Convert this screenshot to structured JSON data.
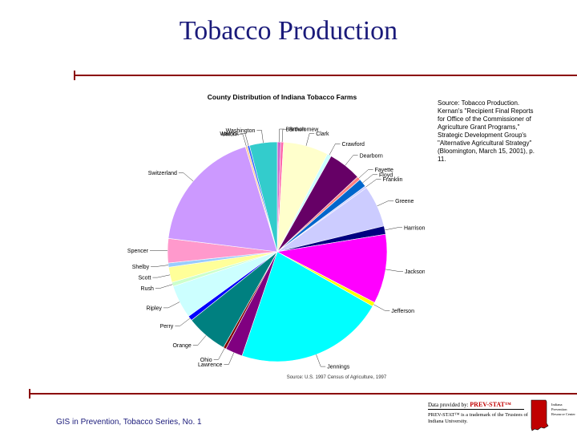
{
  "slide": {
    "title": "Tobacco Production",
    "footer": "GIS in Prevention, Tobacco Series, No. 1",
    "source_note": "Source: Tobacco Production. Kernan's \"Recipient Final Reports for Office of the Commissioner of Agriculture Grant Programs,\" Strategic Development Group's \"Alternative Agricultural Strategy\" (Bloomington, March 15, 2001), p. 11.",
    "provider": {
      "prefix": "Data provided by: ",
      "brand": "PREV-STAT™",
      "note": "PREV-STAT™ is a trademark of the Trustees of Indiana University.",
      "center_name": "Indiana Prevention Resource Center"
    }
  },
  "chart_data": {
    "type": "pie",
    "title": "County Distribution of Indiana Tobacco Farms",
    "source": "Source: U.S. 1997 Census of Agriculture, 1997",
    "slices": [
      {
        "label": "Bartholomew",
        "value": 0.5,
        "color": "#cc66cc"
      },
      {
        "label": "Brown",
        "value": 0.4,
        "color": "#ff66aa"
      },
      {
        "label": "Clark",
        "value": 6.5,
        "color": "#ffffcc"
      },
      {
        "label": "Crawford",
        "value": 0.6,
        "color": "#ccffff"
      },
      {
        "label": "Dearborn",
        "value": 4.8,
        "color": "#660066"
      },
      {
        "label": "Fayette",
        "value": 0.5,
        "color": "#ff8080"
      },
      {
        "label": "Floyd",
        "value": 1.2,
        "color": "#0066cc"
      },
      {
        "label": "Franklin",
        "value": 0.3,
        "color": "#ccccff"
      },
      {
        "label": "Greene",
        "value": 6.0,
        "color": "#ccccff"
      },
      {
        "label": "Harrison",
        "value": 1.2,
        "color": "#000080"
      },
      {
        "label": "Jackson",
        "value": 10.0,
        "color": "#ff00ff"
      },
      {
        "label": "Jefferson",
        "value": 0.6,
        "color": "#ffff00"
      },
      {
        "label": "Jennings",
        "value": 21.5,
        "color": "#00ffff"
      },
      {
        "label": "Lawrence",
        "value": 2.5,
        "color": "#800080"
      },
      {
        "label": "Ohio",
        "value": 0.4,
        "color": "#800000"
      },
      {
        "label": "Orange",
        "value": 6.0,
        "color": "#008080"
      },
      {
        "label": "Perry",
        "value": 0.7,
        "color": "#0000ff"
      },
      {
        "label": "Ripley",
        "value": 4.8,
        "color": "#ccffff"
      },
      {
        "label": "Rush",
        "value": 0.6,
        "color": "#ccffcc"
      },
      {
        "label": "Scott",
        "value": 2.2,
        "color": "#ffff99"
      },
      {
        "label": "Shelby",
        "value": 0.6,
        "color": "#99ccff"
      },
      {
        "label": "Spencer",
        "value": 3.5,
        "color": "#ff99cc"
      },
      {
        "label": "Switzerland",
        "value": 18.0,
        "color": "#cc99ff"
      },
      {
        "label": "Union",
        "value": 0.3,
        "color": "#ffcc99"
      },
      {
        "label": "Warrick",
        "value": 0.3,
        "color": "#3366ff"
      },
      {
        "label": "Washington",
        "value": 4.0,
        "color": "#33cccc"
      }
    ]
  }
}
